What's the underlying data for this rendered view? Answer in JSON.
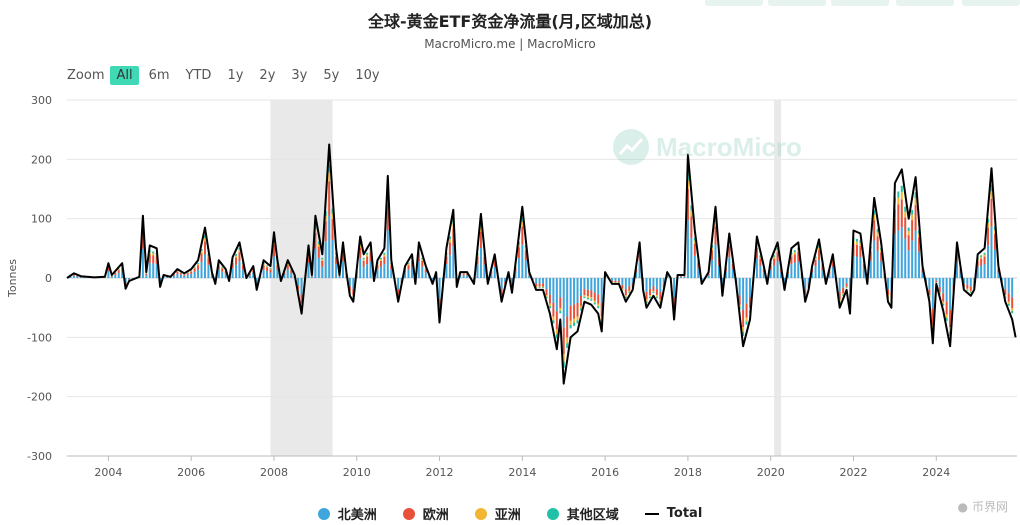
{
  "title": "全球-黄金ETF资金净流量(月,区域加总)",
  "subtitle": "MacroMicro.me | MacroMicro",
  "zoom": {
    "label": "Zoom",
    "options": [
      "All",
      "6m",
      "YTD",
      "1y",
      "2y",
      "3y",
      "5y",
      "10y"
    ],
    "selected": "All"
  },
  "watermark": "MacroMicro",
  "badge": "币界网",
  "colors": {
    "north_america": "#3ea6dd",
    "europe": "#e8503a",
    "asia": "#f2b632",
    "other": "#1fc2a6",
    "total": "#000000",
    "recession": "#e9e9e9"
  },
  "chart_data": {
    "type": "bar",
    "ylabel": "Tonnes",
    "ylim": [
      -300,
      300
    ],
    "yticks": [
      "300",
      "200",
      "100",
      "0",
      "-100",
      "-200",
      "-300"
    ],
    "xticks": [
      "2004",
      "2006",
      "2008",
      "2010",
      "2012",
      "2014",
      "2016",
      "2018",
      "2020",
      "2022",
      "2024"
    ],
    "recession_shading": [
      [
        "2007-12",
        "2009-06"
      ],
      [
        "2020-02",
        "2020-04"
      ]
    ],
    "legend": [
      "北美洲",
      "欧洲",
      "亚洲",
      "其他区域",
      "Total"
    ],
    "total_points": [
      [
        "2003-01",
        0
      ],
      [
        "2003-03",
        8
      ],
      [
        "2003-05",
        3
      ],
      [
        "2003-09",
        1
      ],
      [
        "2003-12",
        2
      ],
      [
        "2004-01",
        25
      ],
      [
        "2004-02",
        5
      ],
      [
        "2004-05",
        25
      ],
      [
        "2004-06",
        -18
      ],
      [
        "2004-07",
        -5
      ],
      [
        "2004-10",
        2
      ],
      [
        "2004-11",
        105
      ],
      [
        "2004-12",
        10
      ],
      [
        "2005-01",
        55
      ],
      [
        "2005-03",
        50
      ],
      [
        "2005-04",
        -15
      ],
      [
        "2005-05",
        5
      ],
      [
        "2005-07",
        2
      ],
      [
        "2005-09",
        15
      ],
      [
        "2005-11",
        8
      ],
      [
        "2006-01",
        15
      ],
      [
        "2006-03",
        30
      ],
      [
        "2006-05",
        85
      ],
      [
        "2006-07",
        10
      ],
      [
        "2006-08",
        -10
      ],
      [
        "2006-09",
        30
      ],
      [
        "2006-11",
        15
      ],
      [
        "2006-12",
        -5
      ],
      [
        "2007-01",
        35
      ],
      [
        "2007-03",
        60
      ],
      [
        "2007-05",
        0
      ],
      [
        "2007-07",
        20
      ],
      [
        "2007-08",
        -20
      ],
      [
        "2007-10",
        30
      ],
      [
        "2007-12",
        20
      ],
      [
        "2008-01",
        77
      ],
      [
        "2008-02",
        30
      ],
      [
        "2008-03",
        -5
      ],
      [
        "2008-05",
        30
      ],
      [
        "2008-07",
        5
      ],
      [
        "2008-09",
        -60
      ],
      [
        "2008-11",
        55
      ],
      [
        "2008-12",
        5
      ],
      [
        "2009-01",
        105
      ],
      [
        "2009-03",
        40
      ],
      [
        "2009-05",
        225
      ],
      [
        "2009-07",
        50
      ],
      [
        "2009-08",
        5
      ],
      [
        "2009-09",
        60
      ],
      [
        "2009-10",
        10
      ],
      [
        "2009-11",
        -30
      ],
      [
        "2009-12",
        -40
      ],
      [
        "2010-02",
        70
      ],
      [
        "2010-03",
        40
      ],
      [
        "2010-05",
        60
      ],
      [
        "2010-06",
        -5
      ],
      [
        "2010-07",
        30
      ],
      [
        "2010-09",
        50
      ],
      [
        "2010-10",
        172
      ],
      [
        "2010-11",
        30
      ],
      [
        "2011-01",
        -40
      ],
      [
        "2011-03",
        20
      ],
      [
        "2011-05",
        40
      ],
      [
        "2011-06",
        -10
      ],
      [
        "2011-07",
        60
      ],
      [
        "2011-09",
        20
      ],
      [
        "2011-11",
        -10
      ],
      [
        "2011-12",
        10
      ],
      [
        "2012-01",
        -75
      ],
      [
        "2012-03",
        50
      ],
      [
        "2012-05",
        115
      ],
      [
        "2012-06",
        -15
      ],
      [
        "2012-07",
        10
      ],
      [
        "2012-09",
        10
      ],
      [
        "2012-11",
        -10
      ],
      [
        "2013-01",
        108
      ],
      [
        "2013-03",
        -10
      ],
      [
        "2013-05",
        40
      ],
      [
        "2013-07",
        -40
      ],
      [
        "2013-09",
        10
      ],
      [
        "2013-10",
        -25
      ],
      [
        "2014-01",
        120
      ],
      [
        "2014-03",
        10
      ],
      [
        "2014-05",
        -20
      ],
      [
        "2014-07",
        -20
      ],
      [
        "2014-09",
        -60
      ],
      [
        "2014-11",
        -120
      ],
      [
        "2014-12",
        -70
      ],
      [
        "2015-01",
        -178
      ],
      [
        "2015-03",
        -100
      ],
      [
        "2015-05",
        -90
      ],
      [
        "2015-07",
        -40
      ],
      [
        "2015-09",
        -45
      ],
      [
        "2015-11",
        -60
      ],
      [
        "2015-12",
        -90
      ],
      [
        "2016-01",
        10
      ],
      [
        "2016-03",
        -10
      ],
      [
        "2016-05",
        -10
      ],
      [
        "2016-07",
        -40
      ],
      [
        "2016-09",
        -20
      ],
      [
        "2016-11",
        60
      ],
      [
        "2016-12",
        -20
      ],
      [
        "2017-01",
        -50
      ],
      [
        "2017-03",
        -30
      ],
      [
        "2017-05",
        -50
      ],
      [
        "2017-07",
        10
      ],
      [
        "2017-08",
        0
      ],
      [
        "2017-09",
        -70
      ],
      [
        "2017-10",
        5
      ],
      [
        "2017-12",
        5
      ],
      [
        "2018-01",
        208
      ],
      [
        "2018-03",
        80
      ],
      [
        "2018-05",
        -10
      ],
      [
        "2018-07",
        10
      ],
      [
        "2018-09",
        120
      ],
      [
        "2018-11",
        -30
      ],
      [
        "2019-01",
        75
      ],
      [
        "2019-03",
        -10
      ],
      [
        "2019-05",
        -115
      ],
      [
        "2019-07",
        -70
      ],
      [
        "2019-09",
        70
      ],
      [
        "2019-11",
        20
      ],
      [
        "2019-12",
        -10
      ],
      [
        "2020-01",
        30
      ],
      [
        "2020-03",
        60
      ],
      [
        "2020-05",
        -20
      ],
      [
        "2020-07",
        50
      ],
      [
        "2020-09",
        60
      ],
      [
        "2020-11",
        -40
      ],
      [
        "2020-12",
        -20
      ],
      [
        "2021-01",
        20
      ],
      [
        "2021-03",
        65
      ],
      [
        "2021-05",
        -10
      ],
      [
        "2021-07",
        40
      ],
      [
        "2021-09",
        -50
      ],
      [
        "2021-11",
        -20
      ],
      [
        "2021-12",
        -60
      ],
      [
        "2022-01",
        80
      ],
      [
        "2022-03",
        75
      ],
      [
        "2022-05",
        -10
      ],
      [
        "2022-07",
        135
      ],
      [
        "2022-09",
        60
      ],
      [
        "2022-11",
        -40
      ],
      [
        "2022-12",
        -50
      ],
      [
        "2023-01",
        160
      ],
      [
        "2023-03",
        183
      ],
      [
        "2023-05",
        100
      ],
      [
        "2023-07",
        170
      ],
      [
        "2023-09",
        20
      ],
      [
        "2023-11",
        -40
      ],
      [
        "2023-12",
        -110
      ],
      [
        "2024-01",
        -10
      ],
      [
        "2024-03",
        -55
      ],
      [
        "2024-05",
        -115
      ],
      [
        "2024-07",
        60
      ],
      [
        "2024-09",
        -20
      ],
      [
        "2024-11",
        -30
      ],
      [
        "2024-12",
        -20
      ],
      [
        "2025-01",
        40
      ],
      [
        "2025-03",
        50
      ],
      [
        "2025-05",
        185
      ],
      [
        "2025-07",
        20
      ],
      [
        "2025-09",
        -40
      ],
      [
        "2025-11",
        -70
      ],
      [
        "2025-12",
        -100
      ]
    ]
  }
}
